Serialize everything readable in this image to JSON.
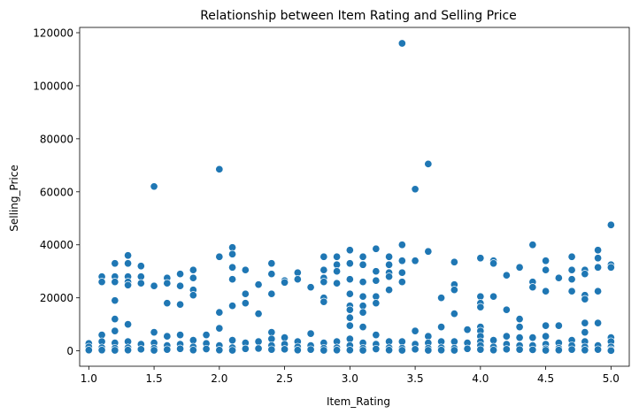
{
  "chart_data": {
    "type": "scatter",
    "title": "Relationship between Item Rating and Selling Price",
    "xlabel": "Item_Rating",
    "ylabel": "Selling_Price",
    "xlim": [
      0.93,
      5.14
    ],
    "ylim": [
      -5800,
      122000
    ],
    "xticks": [
      1.0,
      1.5,
      2.0,
      2.5,
      3.0,
      3.5,
      4.0,
      4.5,
      5.0
    ],
    "xtick_labels": [
      "1.0",
      "1.5",
      "2.0",
      "2.5",
      "3.0",
      "3.5",
      "4.0",
      "4.5",
      "5.0"
    ],
    "yticks": [
      0,
      20000,
      40000,
      60000,
      80000,
      100000,
      120000
    ],
    "ytick_labels": [
      "0",
      "20000",
      "40000",
      "60000",
      "80000",
      "100000",
      "120000"
    ],
    "grid": false,
    "marker_color": "#1f77b4",
    "marker_edge_color": "#ffffff",
    "series": [
      {
        "points": [
          [
            1.0,
            2800
          ],
          [
            1.0,
            1500
          ],
          [
            1.0,
            300
          ],
          [
            1.1,
            28000
          ],
          [
            1.1,
            26000
          ],
          [
            1.1,
            6000
          ],
          [
            1.1,
            3500
          ],
          [
            1.1,
            1200
          ],
          [
            1.1,
            300
          ],
          [
            1.2,
            33000
          ],
          [
            1.2,
            28000
          ],
          [
            1.2,
            26000
          ],
          [
            1.2,
            19000
          ],
          [
            1.2,
            12000
          ],
          [
            1.2,
            7500
          ],
          [
            1.2,
            3000
          ],
          [
            1.2,
            1000
          ],
          [
            1.2,
            200
          ],
          [
            1.3,
            36000
          ],
          [
            1.3,
            33000
          ],
          [
            1.3,
            28000
          ],
          [
            1.3,
            26000
          ],
          [
            1.3,
            24800
          ],
          [
            1.3,
            10000
          ],
          [
            1.3,
            3500
          ],
          [
            1.3,
            1200
          ],
          [
            1.3,
            300
          ],
          [
            1.4,
            32000
          ],
          [
            1.4,
            28000
          ],
          [
            1.4,
            25500
          ],
          [
            1.4,
            2500
          ],
          [
            1.4,
            600
          ],
          [
            1.5,
            62000
          ],
          [
            1.5,
            24500
          ],
          [
            1.5,
            7000
          ],
          [
            1.5,
            3000
          ],
          [
            1.5,
            1000
          ],
          [
            1.5,
            200
          ],
          [
            1.6,
            27500
          ],
          [
            1.6,
            25500
          ],
          [
            1.6,
            18000
          ],
          [
            1.6,
            5500
          ],
          [
            1.6,
            2000
          ],
          [
            1.6,
            500
          ],
          [
            1.7,
            29000
          ],
          [
            1.7,
            24500
          ],
          [
            1.7,
            17500
          ],
          [
            1.7,
            6000
          ],
          [
            1.7,
            2500
          ],
          [
            1.7,
            800
          ],
          [
            1.8,
            30500
          ],
          [
            1.8,
            27500
          ],
          [
            1.8,
            23000
          ],
          [
            1.8,
            21000
          ],
          [
            1.8,
            4000
          ],
          [
            1.8,
            1500
          ],
          [
            1.8,
            300
          ],
          [
            1.9,
            6000
          ],
          [
            1.9,
            2800
          ],
          [
            1.9,
            700
          ],
          [
            2.0,
            68500
          ],
          [
            2.0,
            35500
          ],
          [
            2.0,
            14500
          ],
          [
            2.0,
            8500
          ],
          [
            2.0,
            2000
          ],
          [
            2.0,
            300
          ],
          [
            2.1,
            39000
          ],
          [
            2.1,
            36500
          ],
          [
            2.1,
            31500
          ],
          [
            2.1,
            27000
          ],
          [
            2.1,
            17000
          ],
          [
            2.1,
            4000
          ],
          [
            2.1,
            1200
          ],
          [
            2.1,
            200
          ],
          [
            2.2,
            30500
          ],
          [
            2.2,
            21500
          ],
          [
            2.2,
            18000
          ],
          [
            2.2,
            3000
          ],
          [
            2.2,
            800
          ],
          [
            2.3,
            25000
          ],
          [
            2.3,
            14000
          ],
          [
            2.3,
            3500
          ],
          [
            2.3,
            900
          ],
          [
            2.4,
            33000
          ],
          [
            2.4,
            29000
          ],
          [
            2.4,
            21500
          ],
          [
            2.4,
            7000
          ],
          [
            2.4,
            4500
          ],
          [
            2.4,
            2000
          ],
          [
            2.4,
            500
          ],
          [
            2.5,
            26500
          ],
          [
            2.5,
            25800
          ],
          [
            2.5,
            5000
          ],
          [
            2.5,
            2500
          ],
          [
            2.5,
            600
          ],
          [
            2.6,
            29500
          ],
          [
            2.6,
            27000
          ],
          [
            2.6,
            3500
          ],
          [
            2.6,
            1500
          ],
          [
            2.6,
            300
          ],
          [
            2.7,
            24000
          ],
          [
            2.7,
            6500
          ],
          [
            2.7,
            2000
          ],
          [
            2.7,
            500
          ],
          [
            2.8,
            35500
          ],
          [
            2.8,
            30500
          ],
          [
            2.8,
            27500
          ],
          [
            2.8,
            26000
          ],
          [
            2.8,
            20000
          ],
          [
            2.8,
            18500
          ],
          [
            2.8,
            3000
          ],
          [
            2.8,
            1000
          ],
          [
            2.8,
            200
          ],
          [
            2.9,
            35500
          ],
          [
            2.9,
            32500
          ],
          [
            2.9,
            30000
          ],
          [
            2.9,
            25500
          ],
          [
            2.9,
            3500
          ],
          [
            2.9,
            1200
          ],
          [
            2.9,
            300
          ],
          [
            3.0,
            38000
          ],
          [
            3.0,
            33000
          ],
          [
            3.0,
            27000
          ],
          [
            3.0,
            21500
          ],
          [
            3.0,
            17000
          ],
          [
            3.0,
            15500
          ],
          [
            3.0,
            12500
          ],
          [
            3.0,
            9500
          ],
          [
            3.0,
            4500
          ],
          [
            3.0,
            2000
          ],
          [
            3.0,
            300
          ],
          [
            3.1,
            35500
          ],
          [
            3.1,
            32500
          ],
          [
            3.1,
            26000
          ],
          [
            3.1,
            20500
          ],
          [
            3.1,
            17000
          ],
          [
            3.1,
            14500
          ],
          [
            3.1,
            9000
          ],
          [
            3.1,
            3000
          ],
          [
            3.1,
            1000
          ],
          [
            3.1,
            200
          ],
          [
            3.2,
            38500
          ],
          [
            3.2,
            30000
          ],
          [
            3.2,
            26500
          ],
          [
            3.2,
            20500
          ],
          [
            3.2,
            18000
          ],
          [
            3.2,
            6000
          ],
          [
            3.2,
            2500
          ],
          [
            3.2,
            700
          ],
          [
            3.3,
            35500
          ],
          [
            3.3,
            32500
          ],
          [
            3.3,
            29500
          ],
          [
            3.3,
            28000
          ],
          [
            3.3,
            23000
          ],
          [
            3.3,
            3500
          ],
          [
            3.3,
            1200
          ],
          [
            3.3,
            300
          ],
          [
            3.4,
            116000
          ],
          [
            3.4,
            40000
          ],
          [
            3.4,
            34000
          ],
          [
            3.4,
            29500
          ],
          [
            3.4,
            26000
          ],
          [
            3.4,
            3500
          ],
          [
            3.4,
            1000
          ],
          [
            3.4,
            200
          ],
          [
            3.5,
            61000
          ],
          [
            3.5,
            34000
          ],
          [
            3.5,
            7500
          ],
          [
            3.5,
            2500
          ],
          [
            3.5,
            600
          ],
          [
            3.6,
            70500
          ],
          [
            3.6,
            37500
          ],
          [
            3.6,
            5500
          ],
          [
            3.6,
            3000
          ],
          [
            3.6,
            1000
          ],
          [
            3.6,
            200
          ],
          [
            3.7,
            20000
          ],
          [
            3.7,
            9000
          ],
          [
            3.7,
            3500
          ],
          [
            3.7,
            1200
          ],
          [
            3.7,
            300
          ],
          [
            3.8,
            33500
          ],
          [
            3.8,
            25000
          ],
          [
            3.8,
            23000
          ],
          [
            3.8,
            14000
          ],
          [
            3.8,
            3500
          ],
          [
            3.8,
            1000
          ],
          [
            3.8,
            200
          ],
          [
            3.9,
            8000
          ],
          [
            3.9,
            3000
          ],
          [
            3.9,
            800
          ],
          [
            4.0,
            35000
          ],
          [
            4.0,
            20500
          ],
          [
            4.0,
            18000
          ],
          [
            4.0,
            16500
          ],
          [
            4.0,
            9000
          ],
          [
            4.0,
            7500
          ],
          [
            4.0,
            5500
          ],
          [
            4.0,
            3500
          ],
          [
            4.0,
            2000
          ],
          [
            4.0,
            500
          ],
          [
            4.1,
            34000
          ],
          [
            4.1,
            33000
          ],
          [
            4.1,
            20500
          ],
          [
            4.1,
            4000
          ],
          [
            4.1,
            1500
          ],
          [
            4.1,
            300
          ],
          [
            4.2,
            28500
          ],
          [
            4.2,
            15500
          ],
          [
            4.2,
            5500
          ],
          [
            4.2,
            2500
          ],
          [
            4.2,
            600
          ],
          [
            4.3,
            31500
          ],
          [
            4.3,
            12000
          ],
          [
            4.3,
            9000
          ],
          [
            4.3,
            5000
          ],
          [
            4.3,
            2000
          ],
          [
            4.3,
            500
          ],
          [
            4.4,
            40000
          ],
          [
            4.4,
            26000
          ],
          [
            4.4,
            24000
          ],
          [
            4.4,
            5000
          ],
          [
            4.4,
            2000
          ],
          [
            4.4,
            400
          ],
          [
            4.5,
            34000
          ],
          [
            4.5,
            30500
          ],
          [
            4.5,
            22500
          ],
          [
            4.5,
            9500
          ],
          [
            4.5,
            5500
          ],
          [
            4.5,
            2500
          ],
          [
            4.5,
            800
          ],
          [
            4.5,
            200
          ],
          [
            4.6,
            27500
          ],
          [
            4.6,
            9500
          ],
          [
            4.6,
            3000
          ],
          [
            4.6,
            1000
          ],
          [
            4.6,
            300
          ],
          [
            4.7,
            35500
          ],
          [
            4.7,
            30500
          ],
          [
            4.7,
            27000
          ],
          [
            4.7,
            22500
          ],
          [
            4.7,
            4000
          ],
          [
            4.7,
            2000
          ],
          [
            4.7,
            500
          ],
          [
            4.8,
            30500
          ],
          [
            4.8,
            29000
          ],
          [
            4.8,
            21000
          ],
          [
            4.8,
            19500
          ],
          [
            4.8,
            10500
          ],
          [
            4.8,
            7000
          ],
          [
            4.8,
            3500
          ],
          [
            4.8,
            1500
          ],
          [
            4.8,
            300
          ],
          [
            4.9,
            38000
          ],
          [
            4.9,
            35000
          ],
          [
            4.9,
            31500
          ],
          [
            4.9,
            22500
          ],
          [
            4.9,
            10500
          ],
          [
            4.9,
            2000
          ],
          [
            4.9,
            500
          ],
          [
            5.0,
            47500
          ],
          [
            5.0,
            32500
          ],
          [
            5.0,
            31500
          ],
          [
            5.0,
            5000
          ],
          [
            5.0,
            3500
          ],
          [
            5.0,
            1500
          ],
          [
            5.0,
            500
          ],
          [
            5.0,
            100
          ]
        ]
      }
    ]
  }
}
